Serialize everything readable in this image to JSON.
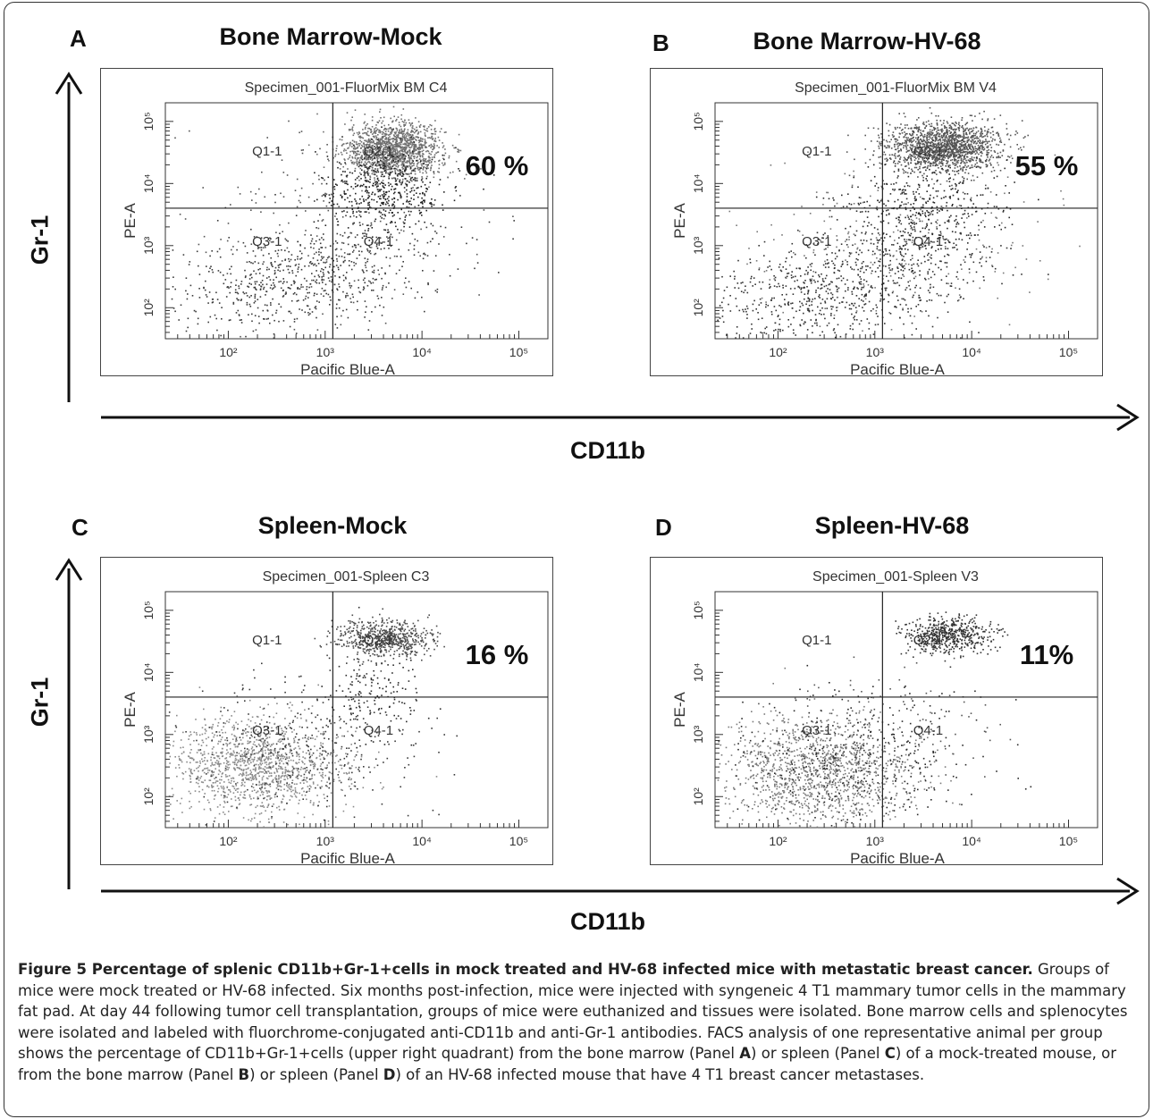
{
  "figure": {
    "axis_x_label": "CD11b",
    "axis_y_label": "Gr-1",
    "caption": {
      "label": "Figure 5",
      "title": "Percentage of splenic CD11b+Gr-1+cells in mock treated and HV-68 infected mice with metastatic breast cancer.",
      "body_1": "Groups of mice were mock treated or HV-68 infected. Six months post-infection, mice were injected with syngeneic 4 T1 mammary tumor cells in the mammary fat pad. At day 44 following tumor cell transplantation, groups of mice were euthanized and tissues were isolated. Bone marrow cells and splenocytes were isolated and labeled with fluorchrome-conjugated anti-CD11b and anti-Gr-1 antibodies. FACS analysis of one representative animal per group shows the percentage of CD11b+Gr-1+cells (upper right quadrant) from the bone marrow (Panel ",
      "ref_a": "A",
      "body_2": ") or spleen (Panel ",
      "ref_c": "C",
      "body_3": ") of a mock-treated mouse, or from the bone marrow (Panel ",
      "ref_b": "B",
      "body_4": ") or spleen (Panel ",
      "ref_d": "D",
      "body_5": ") of an HV-68 infected mouse that have 4 T1 breast cancer metastases."
    }
  },
  "chart_data": [
    {
      "type": "scatter",
      "panel": "A",
      "title": "Bone Marrow-Mock",
      "plot_title": "Specimen_001-FluorMix BM C4",
      "xlabel": "Pacific Blue-A",
      "ylabel": "PE-A",
      "x_scale": "log",
      "y_scale": "log",
      "x_ticks": [
        "10²",
        "10³",
        "10⁴",
        "10⁵"
      ],
      "y_ticks": [
        "10²",
        "10³",
        "10⁴",
        "10⁵"
      ],
      "quadrants": [
        "Q1-1",
        "Q2-1",
        "Q3-1",
        "Q4-1"
      ],
      "gate_x": 1200,
      "gate_y": 4000,
      "percent_label": "60 %",
      "upper_right_percent": 60,
      "populations": [
        {
          "cx": 3.7,
          "cy": 4.55,
          "sx": 0.25,
          "sy": 0.22,
          "n": 1500,
          "color": "#6f6f6f"
        },
        {
          "cx": 3.6,
          "cy": 3.9,
          "sx": 0.3,
          "sy": 0.35,
          "n": 520,
          "color": "#222222"
        },
        {
          "cx": 2.7,
          "cy": 2.5,
          "sx": 0.55,
          "sy": 0.35,
          "n": 700,
          "color": "#3a3a3a",
          "diag": true
        },
        {
          "cx": 3.0,
          "cy": 3.3,
          "sx": 0.7,
          "sy": 0.8,
          "n": 200,
          "color": "#555555"
        }
      ]
    },
    {
      "type": "scatter",
      "panel": "B",
      "title": "Bone Marrow-HV-68",
      "plot_title": "Specimen_001-FluorMix BM V4",
      "xlabel": "Pacific Blue-A",
      "ylabel": "PE-A",
      "x_scale": "log",
      "y_scale": "log",
      "x_ticks": [
        "10²",
        "10³",
        "10⁴",
        "10⁵"
      ],
      "y_ticks": [
        "10²",
        "10³",
        "10⁴",
        "10⁵"
      ],
      "quadrants": [
        "Q1-1",
        "Q2-1",
        "Q3-1",
        "Q4-1"
      ],
      "gate_x": 1200,
      "gate_y": 4000,
      "percent_label": "55 %",
      "upper_right_percent": 55,
      "populations": [
        {
          "cx": 3.7,
          "cy": 4.6,
          "sx": 0.3,
          "sy": 0.2,
          "n": 1500,
          "color": "#555555"
        },
        {
          "cx": 3.5,
          "cy": 3.6,
          "sx": 0.4,
          "sy": 0.45,
          "n": 500,
          "color": "#2a2a2a"
        },
        {
          "cx": 2.6,
          "cy": 2.3,
          "sx": 0.55,
          "sy": 0.4,
          "n": 800,
          "color": "#333333",
          "diag": true
        },
        {
          "cx": 3.2,
          "cy": 3.0,
          "sx": 0.8,
          "sy": 0.7,
          "n": 250,
          "color": "#777777"
        }
      ]
    },
    {
      "type": "scatter",
      "panel": "C",
      "title": "Spleen-Mock",
      "plot_title": "Specimen_001-Spleen C3",
      "xlabel": "Pacific Blue-A",
      "ylabel": "PE-A",
      "x_scale": "log",
      "y_scale": "log",
      "x_ticks": [
        "10²",
        "10³",
        "10⁴",
        "10⁵"
      ],
      "y_ticks": [
        "10²",
        "10³",
        "10⁴",
        "10⁵"
      ],
      "quadrants": [
        "Q1-1",
        "Q2-1",
        "Q3-1",
        "Q4-1"
      ],
      "gate_x": 1200,
      "gate_y": 4000,
      "percent_label": "16 %",
      "upper_right_percent": 16,
      "populations": [
        {
          "cx": 3.6,
          "cy": 4.55,
          "sx": 0.25,
          "sy": 0.15,
          "n": 650,
          "color": "#4a4a4a"
        },
        {
          "cx": 2.3,
          "cy": 2.5,
          "sx": 0.45,
          "sy": 0.4,
          "n": 1300,
          "color": "#8a8a8a"
        },
        {
          "cx": 2.8,
          "cy": 2.8,
          "sx": 0.6,
          "sy": 0.5,
          "n": 350,
          "color": "#3a3a3a"
        },
        {
          "cx": 3.5,
          "cy": 3.7,
          "sx": 0.25,
          "sy": 0.4,
          "n": 150,
          "color": "#2a2a2a"
        }
      ]
    },
    {
      "type": "scatter",
      "panel": "D",
      "title": "Spleen-HV-68",
      "plot_title": "Specimen_001-Spleen V3",
      "xlabel": "Pacific Blue-A",
      "ylabel": "PE-A",
      "x_scale": "log",
      "y_scale": "log",
      "x_ticks": [
        "10²",
        "10³",
        "10⁴",
        "10⁵"
      ],
      "y_ticks": [
        "10²",
        "10³",
        "10⁴",
        "10⁵"
      ],
      "quadrants": [
        "Q1-1",
        "Q2-1",
        "Q3-1",
        "Q4-1"
      ],
      "gate_x": 1200,
      "gate_y": 4000,
      "percent_label": "11%",
      "upper_right_percent": 11,
      "populations": [
        {
          "cx": 3.75,
          "cy": 4.6,
          "sx": 0.22,
          "sy": 0.15,
          "n": 550,
          "color": "#333333"
        },
        {
          "cx": 2.4,
          "cy": 2.4,
          "sx": 0.5,
          "sy": 0.45,
          "n": 1300,
          "color": "#7a7a7a"
        },
        {
          "cx": 2.8,
          "cy": 2.6,
          "sx": 0.6,
          "sy": 0.5,
          "n": 400,
          "color": "#2a2a2a"
        },
        {
          "cx": 3.3,
          "cy": 3.2,
          "sx": 0.5,
          "sy": 0.5,
          "n": 120,
          "color": "#555555"
        }
      ]
    }
  ]
}
